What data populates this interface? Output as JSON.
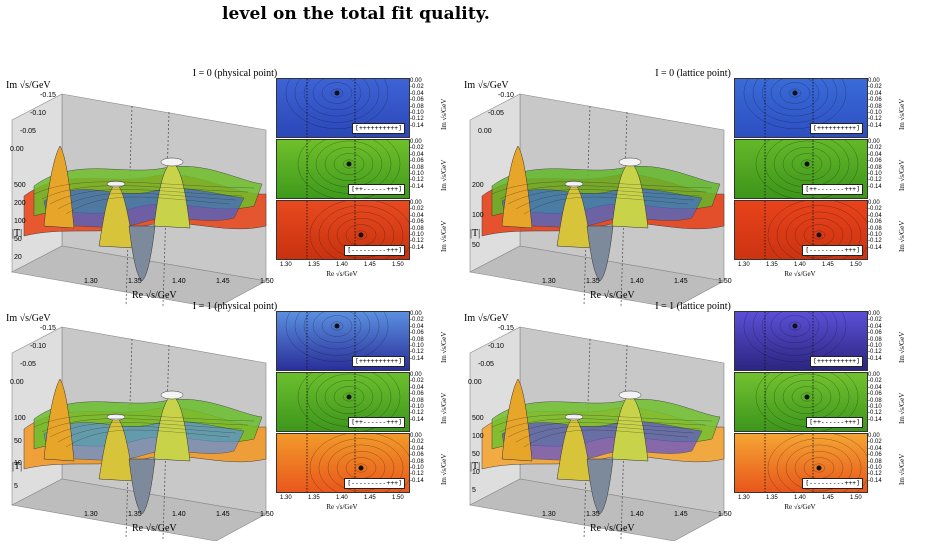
{
  "caption_tail": "level on the total fit quality.",
  "panels": [
    {
      "title": "I = 0 (physical point)",
      "y_label": "Im √s/GeV",
      "y_ticks": [
        "-0.15",
        "-0.10",
        "-0.05",
        "0.00"
      ],
      "z_label": "|T|",
      "z_ticks": [
        "500",
        "200",
        "100",
        "50",
        "20"
      ],
      "x_label": "Re √s/GeV",
      "x_ticks": [
        "1.30",
        "1.35",
        "1.40",
        "1.45",
        "1.50"
      ],
      "sheets": [
        {
          "sign": "[++++++++++]",
          "color_top": "#3d63d6",
          "color_bottom": "#2b47b8"
        },
        {
          "sign": "[++------+++]",
          "color_top": "#6fbf2a",
          "color_bottom": "#3f9a1c"
        },
        {
          "sign": "[---------+++]",
          "color_top": "#e84a1f",
          "color_bottom": "#c8320f"
        }
      ],
      "contour_y_ticks": [
        "0.00",
        "-0.02",
        "-0.04",
        "-0.06",
        "-0.08",
        "-0.10",
        "-0.12",
        "-0.14"
      ],
      "contour_y_label": "Im √s/GeV",
      "contour_x_ticks": [
        "1.30",
        "1.35",
        "1.40",
        "1.45",
        "1.50"
      ],
      "contour_x_label": "Re √s/GeV"
    },
    {
      "title": "I = 0 (lattice point)",
      "y_label": "Im √s/GeV",
      "y_ticks": [
        "-0.10",
        "-0.05",
        "0.00"
      ],
      "z_label": "|T|",
      "z_ticks": [
        "200",
        "100",
        "50"
      ],
      "x_label": "Re √s/GeV",
      "x_ticks": [
        "1.30",
        "1.35",
        "1.40",
        "1.45",
        "1.50"
      ],
      "sheets": [
        {
          "sign": "[++++++++++]",
          "color_top": "#3a6bd8",
          "color_bottom": "#2c4fc2"
        },
        {
          "sign": "[++-------+++]",
          "color_top": "#63b829",
          "color_bottom": "#3d951a"
        },
        {
          "sign": "[---------+++]",
          "color_top": "#e8431b",
          "color_bottom": "#cc3311"
        }
      ],
      "contour_y_ticks": [
        "0.00",
        "-0.02",
        "-0.04",
        "-0.06",
        "-0.08",
        "-0.10",
        "-0.12",
        "-0.14"
      ],
      "contour_y_label": "Im √s/GeV",
      "contour_x_ticks": [
        "1.30",
        "1.35",
        "1.40",
        "1.45",
        "1.50"
      ],
      "contour_x_label": "Re √s/GeV"
    },
    {
      "title": "I = 1 (physical point)",
      "y_label": "Im √s/GeV",
      "y_ticks": [
        "-0.15",
        "-0.10",
        "-0.05",
        "0.00"
      ],
      "z_label": "|T|",
      "z_ticks": [
        "100",
        "50",
        "10",
        "5"
      ],
      "x_label": "Re √s/GeV",
      "x_ticks": [
        "1.30",
        "1.35",
        "1.40",
        "1.45",
        "1.50"
      ],
      "sheets": [
        {
          "sign": "[++++++++++]",
          "color_top": "#5a8fe0",
          "color_bottom": "#2a2f9a"
        },
        {
          "sign": "[++------+++]",
          "color_top": "#6bbf2d",
          "color_bottom": "#3e961c"
        },
        {
          "sign": "[---------+++]",
          "color_top": "#f29a2a",
          "color_bottom": "#e9571c"
        }
      ],
      "contour_y_ticks": [
        "0.00",
        "-0.02",
        "-0.04",
        "-0.06",
        "-0.08",
        "-0.10",
        "-0.12",
        "-0.14"
      ],
      "contour_y_label": "Im √s/GeV",
      "contour_x_ticks": [
        "1.30",
        "1.35",
        "1.40",
        "1.45",
        "1.50"
      ],
      "contour_x_label": "Re √s/GeV"
    },
    {
      "title": "I = 1 (lattice point)",
      "y_label": "Im √s/GeV",
      "y_ticks": [
        "-0.15",
        "-0.10",
        "-0.05",
        "0.00"
      ],
      "z_label": "|T|",
      "z_ticks": [
        "500",
        "100",
        "50",
        "10",
        "5"
      ],
      "x_label": "Re √s/GeV",
      "x_ticks": [
        "1.30",
        "1.35",
        "1.40",
        "1.45",
        "1.50"
      ],
      "sheets": [
        {
          "sign": "[++++++++++]",
          "color_top": "#5b4fd6",
          "color_bottom": "#2c2580"
        },
        {
          "sign": "[++------+++]",
          "color_top": "#72c12f",
          "color_bottom": "#3d961c"
        },
        {
          "sign": "[---------+++]",
          "color_top": "#f5a533",
          "color_bottom": "#e8561c"
        }
      ],
      "contour_y_ticks": [
        "0.00",
        "-0.02",
        "-0.04",
        "-0.06",
        "-0.08",
        "-0.10",
        "-0.12",
        "-0.14"
      ],
      "contour_y_label": "Im √s/GeV",
      "contour_x_ticks": [
        "1.30",
        "1.35",
        "1.40",
        "1.45",
        "1.50"
      ],
      "contour_x_label": "Re √s/GeV"
    }
  ]
}
